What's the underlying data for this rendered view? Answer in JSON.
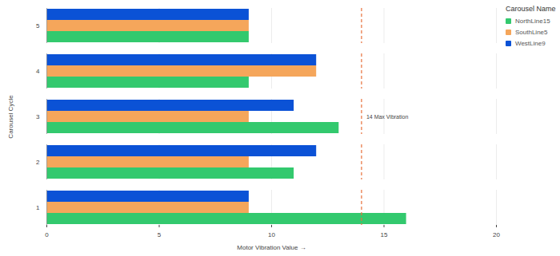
{
  "chart_data": {
    "type": "bar",
    "orientation": "horizontal",
    "x_label": "Motor Vibration Value",
    "y_label": "Carousel Cycle",
    "legend_title": "Carousel Name",
    "categories": [
      "1",
      "2",
      "3",
      "4",
      "5"
    ],
    "series": [
      {
        "name": "NorthLine15",
        "color": "#33c96e",
        "values": [
          16,
          11,
          13,
          9,
          9
        ]
      },
      {
        "name": "SouthLine5",
        "color": "#f5a65b",
        "values": [
          9,
          9,
          9,
          12,
          9
        ]
      },
      {
        "name": "WestLine9",
        "color": "#0b52d6",
        "values": [
          9,
          12,
          11,
          12,
          9
        ]
      }
    ],
    "xlim": [
      0,
      20
    ],
    "xticks": [
      0,
      5,
      10,
      15,
      20
    ],
    "grid": true,
    "legend": "top-right",
    "annotations": [
      {
        "x": 14,
        "text": "14 Max Vibration"
      }
    ]
  }
}
